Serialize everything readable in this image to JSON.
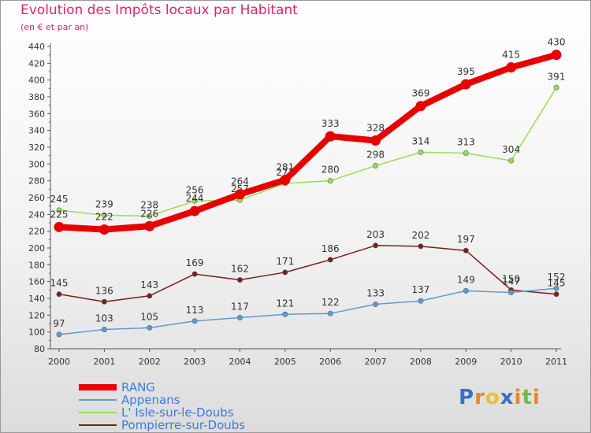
{
  "header": {
    "title": "Evolution des Impôts locaux par Habitant",
    "subtitle": "(en € et par an)"
  },
  "logo": {
    "text": "Proxiti"
  },
  "chart_data": {
    "type": "line",
    "title": "Evolution des Impôts locaux par Habitant",
    "subtitle": "(en € et par an)",
    "x": [
      "2000",
      "2001",
      "2002",
      "2003",
      "2004",
      "2005",
      "2006",
      "2007",
      "2008",
      "2009",
      "2010",
      "2011"
    ],
    "ylim": [
      80,
      440
    ],
    "yticks": [
      80,
      100,
      120,
      140,
      160,
      180,
      200,
      220,
      240,
      260,
      280,
      300,
      320,
      340,
      360,
      380,
      400,
      420,
      440
    ],
    "grid": false,
    "legend_position": "bottom-left",
    "series": [
      {
        "name": "RANG",
        "color": "#e60000",
        "values": [
          225,
          222,
          226,
          244,
          264,
          281,
          333,
          328,
          369,
          395,
          415,
          430
        ]
      },
      {
        "name": "Appenans",
        "color": "#5b9bd5",
        "values": [
          97,
          103,
          105,
          113,
          117,
          121,
          122,
          133,
          137,
          149,
          147,
          152
        ]
      },
      {
        "name": "L' Isle-sur-le-Doubs",
        "color": "#99dd55",
        "values": [
          245,
          239,
          238,
          256,
          257,
          277,
          280,
          298,
          314,
          313,
          304,
          391
        ]
      },
      {
        "name": "Pompierre-sur-Doubs",
        "color": "#7a1e1e",
        "values": [
          145,
          136,
          143,
          169,
          162,
          171,
          186,
          203,
          202,
          197,
          150,
          145
        ]
      }
    ]
  }
}
